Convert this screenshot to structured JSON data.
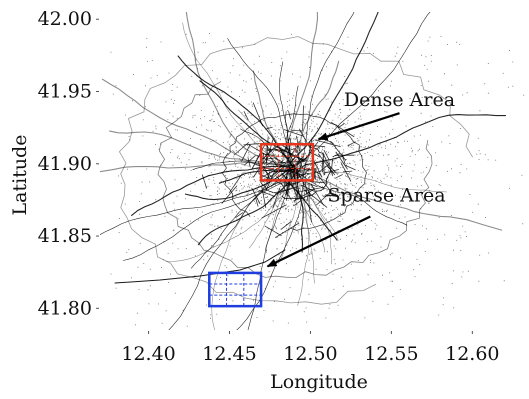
{
  "chart_data": {
    "type": "scatter",
    "title": "",
    "xlabel": "Longitude",
    "ylabel": "Latitude",
    "xlim": [
      12.37,
      12.635
    ],
    "ylim": [
      41.785,
      42.005
    ],
    "xticks": [
      {
        "value": 12.4,
        "label": "12.40"
      },
      {
        "value": 12.45,
        "label": "12.45"
      },
      {
        "value": 12.5,
        "label": "12.50"
      },
      {
        "value": 12.55,
        "label": "12.55"
      },
      {
        "value": 12.6,
        "label": "12.60"
      }
    ],
    "yticks": [
      {
        "value": 41.8,
        "label": "41.80"
      },
      {
        "value": 41.85,
        "label": "41.85"
      },
      {
        "value": 41.9,
        "label": "41.90"
      },
      {
        "value": 41.95,
        "label": "41.95"
      },
      {
        "value": 42.0,
        "label": "42.00"
      }
    ],
    "grid": false,
    "points_color": "#000000",
    "center": {
      "lon": 12.49,
      "lat": 41.895
    },
    "regions": [
      {
        "label": "Dense Area",
        "color": "#e8351b",
        "lon": [
          12.4695,
          12.5015
        ],
        "lat": [
          41.8885,
          41.9135
        ],
        "label_at": {
          "lon": 12.555,
          "lat": 41.94
        },
        "arrow_from": {
          "lon": 12.555,
          "lat": 41.935
        },
        "arrow_to": {
          "lon": 12.505,
          "lat": 41.917
        }
      },
      {
        "label": "Sparse Area",
        "color": "#1f3ee0",
        "lon": [
          12.4375,
          12.4695
        ],
        "lat": [
          41.8015,
          41.8245
        ],
        "label_at": {
          "lon": 12.547,
          "lat": 41.874
        },
        "arrow_from": {
          "lon": 12.537,
          "lat": 41.8635
        },
        "arrow_to": {
          "lon": 12.4735,
          "lat": 41.829
        }
      }
    ]
  }
}
